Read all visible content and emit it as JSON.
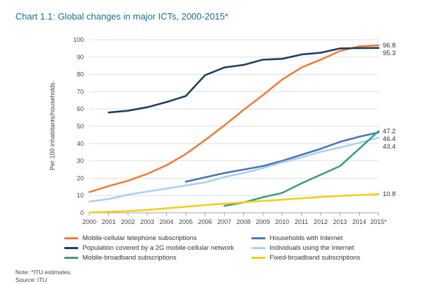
{
  "chart_data": {
    "type": "line",
    "title": "Chart 1.1:   Global changes in major ICTs, 2000-2015*",
    "ylabel": "Per 100 inhabitants/households",
    "xlabel": "",
    "ylim": [
      0,
      100
    ],
    "yticks": [
      0,
      10,
      20,
      30,
      40,
      50,
      60,
      70,
      80,
      90,
      100
    ],
    "categories": [
      "2000",
      "2001",
      "2002",
      "2003",
      "2004",
      "2005",
      "2006",
      "2007",
      "2008",
      "2009",
      "2010",
      "2011",
      "2012",
      "2013",
      "2014",
      "2015*"
    ],
    "series": [
      {
        "name": "Mobile-cellular telephone subscriptions",
        "color": "#ef7d3c",
        "values": [
          12,
          15.5,
          18.5,
          22.5,
          27.5,
          34,
          42,
          50.5,
          59.5,
          68,
          77,
          84,
          88.5,
          93.5,
          96.2,
          96.8
        ],
        "end_label": "96.8"
      },
      {
        "name": "Population covered by a 2G mobile-cellular network",
        "color": "#1b3f63",
        "values": [
          null,
          58,
          59,
          61,
          64,
          67.5,
          79.5,
          84,
          85.5,
          88.5,
          89,
          91.5,
          92.5,
          95,
          95.2,
          95.3
        ],
        "end_label": "95.3"
      },
      {
        "name": "Households with Internet",
        "color": "#4b74b6",
        "values": [
          null,
          null,
          null,
          null,
          null,
          18,
          20.5,
          23,
          25,
          27,
          30,
          33.5,
          37,
          41,
          44,
          46.4
        ],
        "end_label": "46.4"
      },
      {
        "name": "Individuals using the Internet",
        "color": "#a9d2f0",
        "values": [
          6.5,
          8,
          10.5,
          12.3,
          14,
          15.8,
          17.6,
          20.7,
          23,
          25.8,
          29.2,
          32,
          35.3,
          37.8,
          40.5,
          43.4
        ],
        "end_label": "43.4"
      },
      {
        "name": "Mobile-broadband subscriptions",
        "color": "#3e9e7b",
        "values": [
          null,
          null,
          null,
          null,
          null,
          null,
          null,
          4,
          6,
          9,
          11.5,
          17,
          22,
          27,
          37,
          47.2
        ],
        "end_label": "47.2"
      },
      {
        "name": "Fixed-broadband subscriptions",
        "color": "#f5cf1a",
        "values": [
          0.2,
          0.6,
          1,
          1.7,
          2.6,
          3.5,
          4.5,
          5.3,
          6.1,
          6.9,
          7.6,
          8.4,
          9.1,
          9.8,
          10.3,
          10.8
        ],
        "end_label": "10.8"
      }
    ],
    "legend_order": [
      0,
      2,
      1,
      3,
      4,
      5
    ]
  },
  "note": "Note: *ITU estimates.",
  "source": "Source: ITU"
}
